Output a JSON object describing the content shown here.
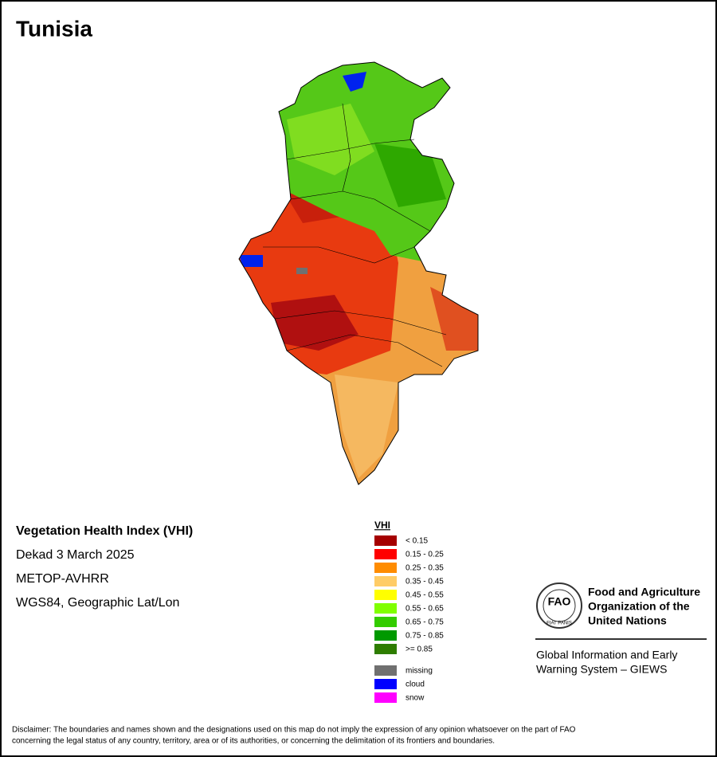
{
  "title": "Tunisia",
  "info": {
    "heading": "Vegetation Health Index (VHI)",
    "lines": [
      "Dekad 3 March 2025",
      "METOP-AVHRR",
      "WGS84, Geographic Lat/Lon"
    ]
  },
  "legend": {
    "title": "VHI",
    "classes": [
      {
        "label": "< 0.15",
        "color": "#a50000"
      },
      {
        "label": "0.15 - 0.25",
        "color": "#ff0000"
      },
      {
        "label": "0.25 - 0.35",
        "color": "#ff8c00"
      },
      {
        "label": "0.35 - 0.45",
        "color": "#ffcc66"
      },
      {
        "label": "0.45 - 0.55",
        "color": "#ffff00"
      },
      {
        "label": "0.55 - 0.65",
        "color": "#80ff00"
      },
      {
        "label": "0.65 - 0.75",
        "color": "#33cc00"
      },
      {
        "label": "0.75 - 0.85",
        "color": "#009900"
      },
      {
        "label": ">= 0.85",
        "color": "#2e7d00"
      }
    ],
    "other": [
      {
        "label": "missing",
        "color": "#707070"
      },
      {
        "label": "cloud",
        "color": "#0000ff"
      },
      {
        "label": "snow",
        "color": "#ff00ff"
      }
    ]
  },
  "org": {
    "logo_text": "FAO",
    "logo_motto": "FIAT PANIS",
    "name_lines": [
      "Food and Agriculture",
      "Organization of the",
      "United Nations"
    ],
    "program_lines": [
      "Global Information and Early",
      "Warning System – GIEWS"
    ]
  },
  "disclaimer": [
    "Disclaimer: The boundaries and names shown and the designations used on this map do not imply the expression of any opinion whatsoever on the part of FAO",
    "concerning the legal status of any country, territory, area or of its authorities, or concerning the delimitation of its frontiers and boundaries."
  ]
}
